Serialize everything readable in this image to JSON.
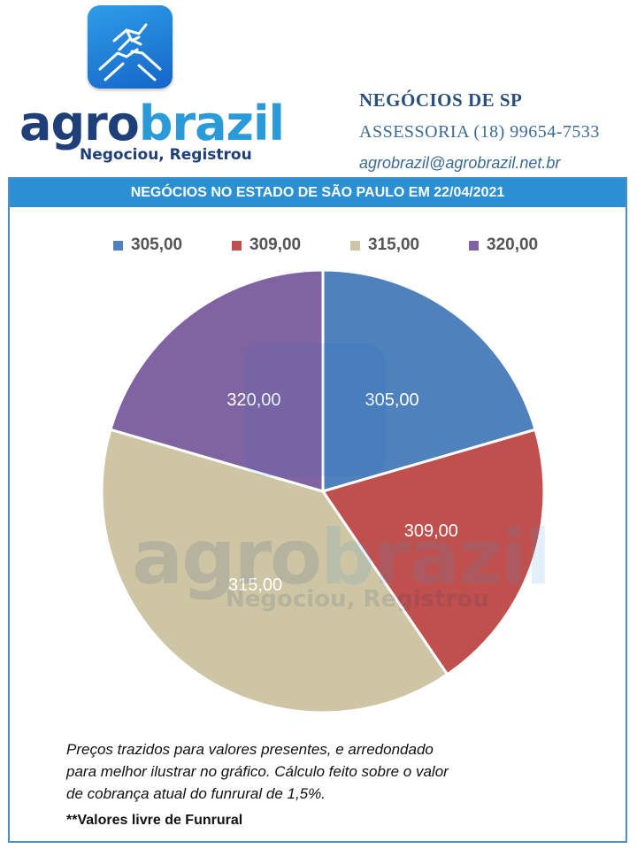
{
  "brand": {
    "logo_word_part1": "agro",
    "logo_word_part2": "brazil",
    "tagline": "Negociou, Registrou"
  },
  "company": {
    "title": "NEGÓCIOS DE SP",
    "phone_line": "ASSESSORIA (18) 99654-7533",
    "email": "agrobrazil@agrobrazil.net.br"
  },
  "header": {
    "title": "NEGÓCIOS NO ESTADO DE SÃO PAULO EM  22/04/2021"
  },
  "footnote": {
    "line1": "Preços trazidos para valores presentes, e arredondado",
    "line2": "para melhor ilustrar no gráfico. Cálculo feito sobre o valor",
    "line3": "de cobrança atual do funrural de 1,5%.",
    "bold": "**Valores livre de Funrural"
  },
  "colors": {
    "brand_dark": "#1e3f7a",
    "brand_light": "#2a9ad8",
    "header_bar": "#2b8fd4"
  },
  "chart_data": {
    "type": "pie",
    "title": "",
    "categories": [
      "305,00",
      "309,00",
      "315,00",
      "320,00"
    ],
    "values": [
      20.5,
      20.0,
      39.0,
      20.5
    ],
    "data_labels": [
      "305,00",
      "309,00",
      "315,00",
      "320,00"
    ],
    "colors": [
      "#4f81bd",
      "#c0504d",
      "#cdc5a4",
      "#8064a2"
    ],
    "legend_position": "top",
    "start_angle_deg": 0,
    "direction": "clockwise"
  }
}
